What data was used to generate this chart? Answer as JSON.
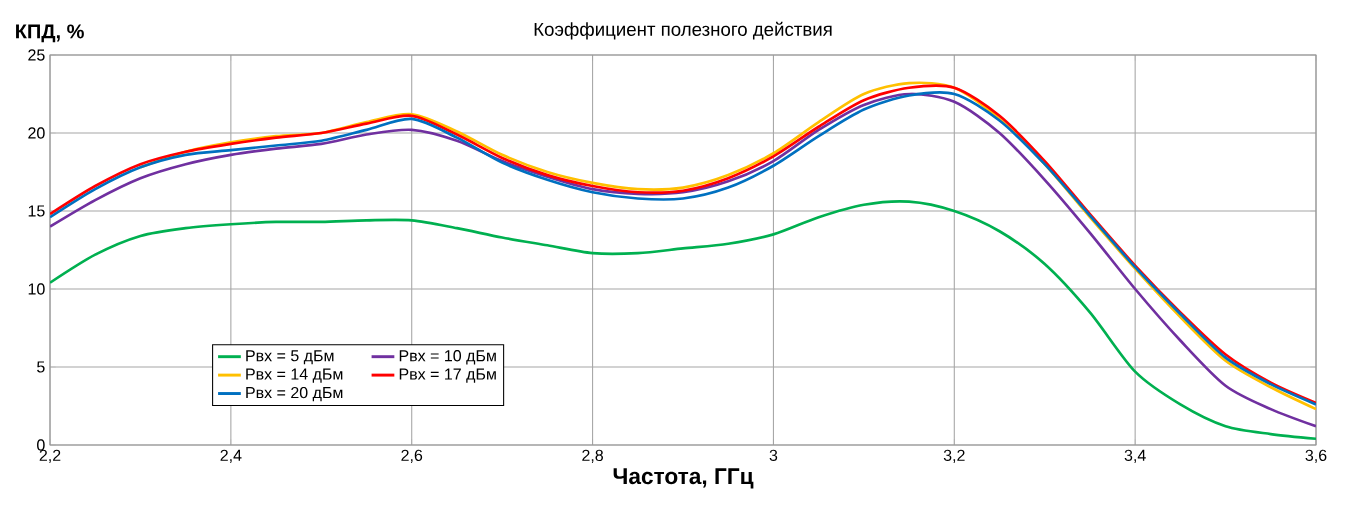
{
  "chart_data": {
    "type": "line",
    "title": "Коэффициент полезного действия",
    "xlabel": "Частота, ГГц",
    "ylabel": "КПД, %",
    "x": [
      2.2,
      2.25,
      2.3,
      2.35,
      2.4,
      2.45,
      2.5,
      2.55,
      2.6,
      2.65,
      2.7,
      2.75,
      2.8,
      2.85,
      2.9,
      2.95,
      3.0,
      3.05,
      3.1,
      3.15,
      3.2,
      3.25,
      3.3,
      3.35,
      3.4,
      3.45,
      3.5,
      3.55,
      3.6
    ],
    "series": [
      {
        "name": "Pвх = 5 дБм",
        "color": "#00b050",
        "values": [
          10.4,
          12.2,
          13.4,
          13.9,
          14.15,
          14.3,
          14.3,
          14.4,
          14.4,
          13.9,
          13.3,
          12.8,
          12.3,
          12.3,
          12.6,
          12.9,
          13.5,
          14.6,
          15.4,
          15.6,
          15.0,
          13.7,
          11.6,
          8.5,
          4.7,
          2.6,
          1.2,
          0.7,
          0.4
        ]
      },
      {
        "name": "Pвх = 10 дБм",
        "color": "#7030a0",
        "values": [
          14.0,
          15.7,
          17.1,
          18.0,
          18.6,
          19.0,
          19.3,
          19.9,
          20.2,
          19.5,
          18.2,
          17.2,
          16.4,
          16.1,
          16.2,
          16.9,
          18.2,
          20.2,
          21.8,
          22.5,
          22.0,
          20.0,
          17.0,
          13.6,
          10.0,
          6.7,
          3.8,
          2.3,
          1.2
        ]
      },
      {
        "name": "Pвх = 14 дБм",
        "color": "#ffc000",
        "values": [
          null,
          null,
          17.8,
          18.8,
          19.4,
          19.8,
          20.0,
          20.7,
          21.2,
          20.1,
          18.6,
          17.5,
          16.8,
          16.4,
          16.5,
          17.3,
          18.7,
          20.7,
          22.5,
          23.2,
          22.9,
          20.9,
          18.0,
          14.6,
          11.3,
          8.2,
          5.4,
          3.7,
          2.3
        ]
      },
      {
        "name": "Pвх = 17 дБм",
        "color": "#ff0000",
        "values": [
          14.8,
          16.6,
          18.0,
          18.8,
          19.3,
          19.7,
          20.0,
          20.6,
          21.1,
          19.9,
          18.4,
          17.3,
          16.6,
          16.2,
          16.3,
          17.1,
          18.5,
          20.4,
          22.1,
          22.9,
          22.9,
          21.1,
          18.2,
          14.8,
          11.5,
          8.5,
          5.8,
          4.0,
          2.7
        ]
      },
      {
        "name": "Pвх = 20 дБм",
        "color": "#0070c0",
        "values": [
          14.6,
          16.4,
          17.8,
          18.6,
          18.9,
          19.2,
          19.5,
          20.2,
          20.9,
          19.7,
          18.1,
          17.0,
          16.2,
          15.8,
          15.8,
          16.5,
          17.9,
          19.8,
          21.5,
          22.4,
          22.5,
          20.8,
          18.0,
          14.7,
          11.4,
          8.4,
          5.6,
          3.9,
          2.6
        ]
      }
    ],
    "xlim": [
      2.2,
      3.6
    ],
    "xticks": [
      {
        "value": 2.2,
        "label": "2,2"
      },
      {
        "value": 2.4,
        "label": "2,4"
      },
      {
        "value": 2.6,
        "label": "2,6"
      },
      {
        "value": 2.8,
        "label": "2,8"
      },
      {
        "value": 3.0,
        "label": "3"
      },
      {
        "value": 3.2,
        "label": "3,2"
      },
      {
        "value": 3.4,
        "label": "3,4"
      },
      {
        "value": 3.6,
        "label": "3,6"
      }
    ],
    "ylim": [
      0,
      25
    ],
    "yticks": [
      0,
      5,
      10,
      15,
      20,
      25
    ],
    "grid": true,
    "legend": "bottom left",
    "line_style": "solid"
  }
}
